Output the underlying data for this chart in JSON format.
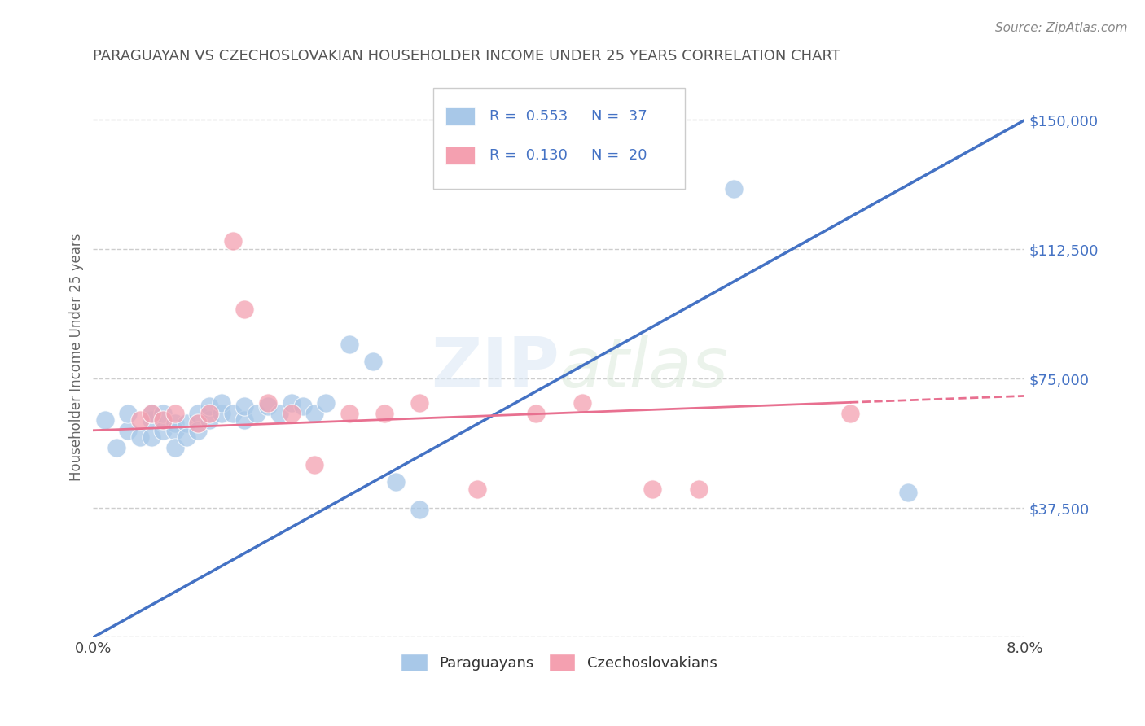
{
  "title": "PARAGUAYAN VS CZECHOSLOVAKIAN HOUSEHOLDER INCOME UNDER 25 YEARS CORRELATION CHART",
  "source_text": "Source: ZipAtlas.com",
  "ylabel": "Householder Income Under 25 years",
  "xlim": [
    0.0,
    0.08
  ],
  "ylim": [
    0,
    162500
  ],
  "yticks": [
    0,
    37500,
    75000,
    112500,
    150000
  ],
  "ytick_labels": [
    "",
    "$37,500",
    "$75,000",
    "$112,500",
    "$150,000"
  ],
  "watermark": "ZIPatlas",
  "legend_R1": "0.553",
  "legend_N1": "37",
  "legend_R2": "0.130",
  "legend_N2": "20",
  "paraguayan_color": "#a8c8e8",
  "czechoslovakian_color": "#f4a0b0",
  "line1_color": "#4472c4",
  "line2_color": "#e87090",
  "label1": "Paraguayans",
  "label2": "Czechoslovakians",
  "paraguayan_x": [
    0.001,
    0.002,
    0.003,
    0.003,
    0.004,
    0.005,
    0.005,
    0.005,
    0.006,
    0.006,
    0.007,
    0.007,
    0.007,
    0.008,
    0.008,
    0.009,
    0.009,
    0.01,
    0.01,
    0.011,
    0.011,
    0.012,
    0.013,
    0.013,
    0.014,
    0.015,
    0.016,
    0.017,
    0.018,
    0.019,
    0.02,
    0.022,
    0.024,
    0.026,
    0.028,
    0.055,
    0.07
  ],
  "paraguayan_y": [
    63000,
    55000,
    60000,
    65000,
    58000,
    63000,
    58000,
    65000,
    60000,
    65000,
    62000,
    60000,
    55000,
    62000,
    58000,
    65000,
    60000,
    63000,
    67000,
    65000,
    68000,
    65000,
    63000,
    67000,
    65000,
    67000,
    65000,
    68000,
    67000,
    65000,
    68000,
    85000,
    80000,
    45000,
    37000,
    130000,
    42000
  ],
  "czechoslovakian_x": [
    0.004,
    0.005,
    0.006,
    0.007,
    0.009,
    0.01,
    0.012,
    0.013,
    0.015,
    0.017,
    0.019,
    0.022,
    0.025,
    0.028,
    0.033,
    0.038,
    0.042,
    0.048,
    0.052,
    0.065
  ],
  "czechoslovakian_y": [
    63000,
    65000,
    63000,
    65000,
    62000,
    65000,
    115000,
    95000,
    68000,
    65000,
    50000,
    65000,
    65000,
    68000,
    43000,
    65000,
    68000,
    43000,
    43000,
    65000
  ],
  "background_color": "#ffffff",
  "grid_color": "#c8c8c8"
}
